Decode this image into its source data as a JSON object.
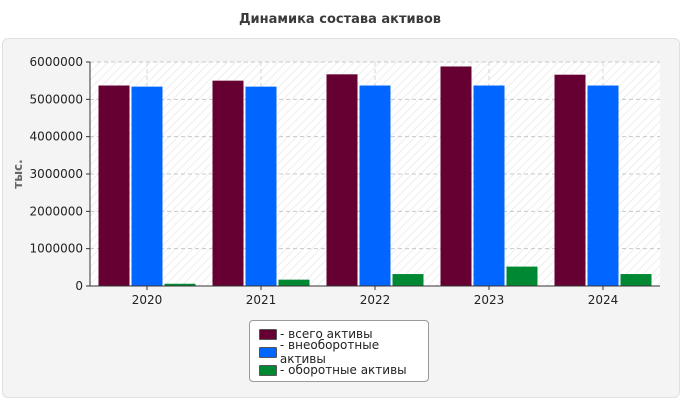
{
  "chart_data": {
    "type": "bar",
    "title": "Динамика состава активов",
    "ylabel": "тыс.",
    "xlabel": "",
    "categories": [
      "2020",
      "2021",
      "2022",
      "2023",
      "2024"
    ],
    "ylim": [
      0,
      6000000
    ],
    "yticks": [
      0,
      1000000,
      2000000,
      3000000,
      4000000,
      5000000,
      6000000
    ],
    "grid": true,
    "legend_position": "bottom",
    "series": [
      {
        "name": "- всего активы",
        "color": "#660033",
        "values": [
          5370000,
          5500000,
          5670000,
          5880000,
          5660000
        ]
      },
      {
        "name": "- внеоборотные активы",
        "color": "#0066ff",
        "values": [
          5340000,
          5340000,
          5370000,
          5370000,
          5370000
        ]
      },
      {
        "name": "- оборотные активы",
        "color": "#008833",
        "values": [
          60000,
          170000,
          320000,
          520000,
          320000
        ]
      }
    ]
  }
}
